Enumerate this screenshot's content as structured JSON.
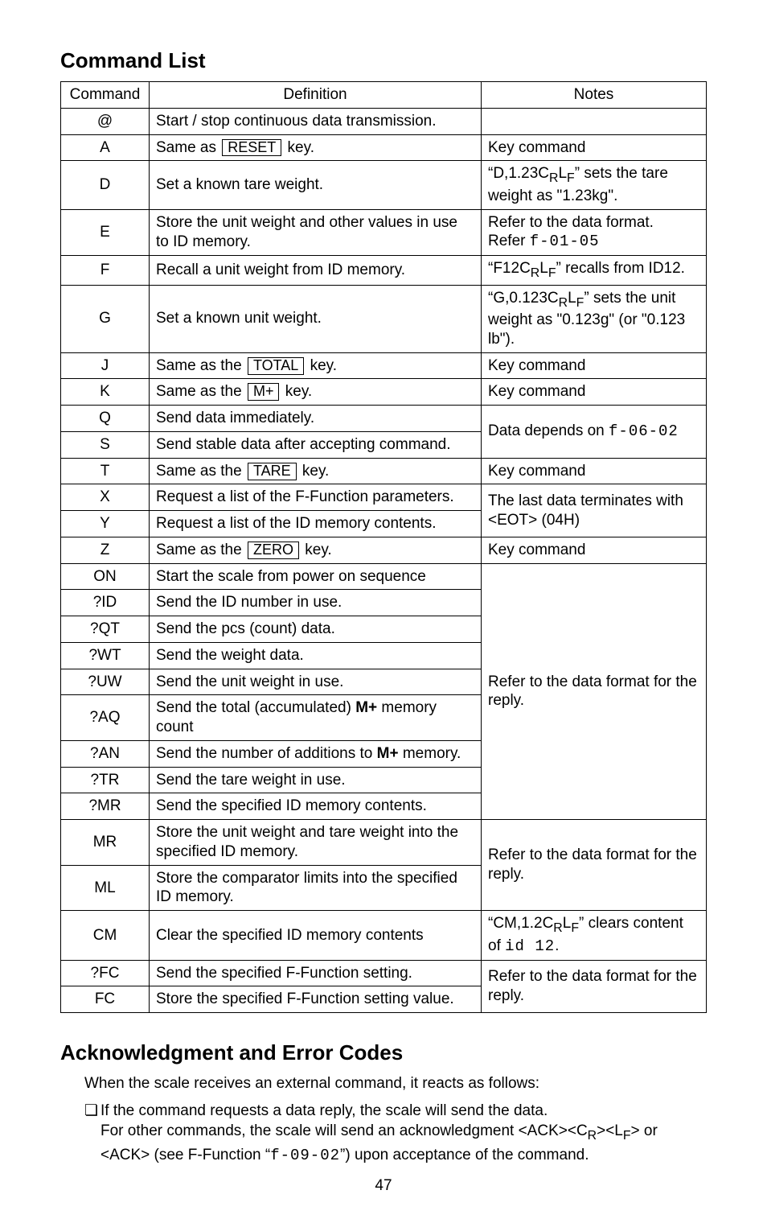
{
  "section1": {
    "title": "Command List",
    "headers": {
      "c1": "Command",
      "c2": "Definition",
      "c3": "Notes"
    },
    "rows": {
      "at": {
        "cmd": "@",
        "def_plain": "Start / stop continuous data transmission.",
        "notes": ""
      },
      "A": {
        "cmd": "A",
        "def_pre": "Same as ",
        "key": "RESET",
        "def_post": " key.",
        "notes": "Key command"
      },
      "D": {
        "cmd": "D",
        "def_plain": "Set a known tare weight.",
        "notes_html": "“D,1.23C<sub>R</sub>L<sub>F</sub>” sets the tare weight as \"1.23kg\"."
      },
      "E": {
        "cmd": "E",
        "def_plain": "Store the unit weight and other values in use to ID memory.",
        "notes_line1": "Refer to the data format.",
        "notes_line2_pre": "Refer ",
        "notes_seg": "f-01-05"
      },
      "F": {
        "cmd": "F",
        "def_plain": "Recall a unit weight from ID memory.",
        "notes_html": "“F12C<sub>R</sub>L<sub>F</sub>” recalls from ID12."
      },
      "G": {
        "cmd": "G",
        "def_plain": "Set a known unit weight.",
        "notes_html": "“G,0.123C<sub>R</sub>L<sub>F</sub>” sets the unit weight as \"0.123g\" (or \"0.123 lb\")."
      },
      "J": {
        "cmd": "J",
        "def_pre": "Same as the ",
        "key": "TOTAL",
        "def_post": " key.",
        "notes": "Key command"
      },
      "K": {
        "cmd": "K",
        "def_pre": "Same as the ",
        "key": "M+",
        "def_post": " key.",
        "notes": "Key command"
      },
      "Q": {
        "cmd": "Q",
        "def_plain": "Send data immediately."
      },
      "S": {
        "cmd": "S",
        "def_plain": "Send stable data after accepting command."
      },
      "QS_notes_pre": "Data depends on ",
      "QS_notes_seg": "f-06-02",
      "T": {
        "cmd": "T",
        "def_pre": "Same as the ",
        "key": "TARE",
        "def_post": " key.",
        "notes": "Key command"
      },
      "X": {
        "cmd": "X",
        "def_plain": "Request a list of the F-Function parameters."
      },
      "Y": {
        "cmd": "Y",
        "def_plain": "Request a list of the ID memory contents."
      },
      "XY_notes": "The last data terminates with <EOT> (04H)",
      "Z": {
        "cmd": "Z",
        "def_pre": "Same as the ",
        "key": "ZERO",
        "def_post": " key.",
        "notes": "Key command"
      },
      "ON": {
        "cmd": "ON",
        "def_plain": "Start the scale from power on sequence"
      },
      "ID": {
        "cmd": "?ID",
        "def_plain": "Send the ID number in use."
      },
      "QT": {
        "cmd": "?QT",
        "def_plain": "Send the pcs (count) data."
      },
      "WT": {
        "cmd": "?WT",
        "def_plain": "Send the weight data."
      },
      "UW": {
        "cmd": "?UW",
        "def_plain": "Send the unit weight in use."
      },
      "AQ": {
        "cmd": "?AQ",
        "def_pre": "Send the total (accumulated) ",
        "bold": "M+",
        "def_post": " memory count"
      },
      "AN": {
        "cmd": "?AN",
        "def_pre": "Send the number of additions to ",
        "bold": "M+",
        "def_post": " memory."
      },
      "TR": {
        "cmd": "?TR",
        "def_plain": "Send the tare weight in use."
      },
      "MRq": {
        "cmd": "?MR",
        "def_plain": "Send the specified ID memory contents."
      },
      "block_notes": "Refer to the data format for the reply.",
      "MR": {
        "cmd": "MR",
        "def_plain": "Store the unit weight and tare weight into the specified ID memory."
      },
      "ML": {
        "cmd": "ML",
        "def_plain": "Store the comparator limits into the specified ID memory."
      },
      "MRML_notes": "Refer to the data format for the reply.",
      "CM": {
        "cmd": "CM",
        "def_plain": "Clear the specified ID memory contents",
        "notes_html_pre": "“CM,1.2C<sub>R</sub>L<sub>F</sub>” clears content of ",
        "notes_seg": "id 12",
        "notes_post": "."
      },
      "FCq": {
        "cmd": "?FC",
        "def_plain": "Send the specified F-Function setting."
      },
      "FC": {
        "cmd": "FC",
        "def_plain": "Store the specified F-Function setting value."
      },
      "FC_notes": "Refer to the data format for the reply."
    }
  },
  "section2": {
    "title": "Acknowledgment and Error Codes",
    "intro": "When the scale receives an external command, it reacts as follows:",
    "bullet": "❏",
    "item1": "If the command requests a data reply, the scale will send the data.",
    "item2_pre": "For other commands, the scale will send an acknowledgment <ACK><C",
    "item2_mid": "><L",
    "item2_post": "> or <ACK> (see F-Function “",
    "item2_seg": "f-09-02",
    "item2_end": "”) upon acceptance of the command."
  },
  "pagenum": "47",
  "style": {
    "key_border": "#000000",
    "text_color": "#000000",
    "bg": "#ffffff"
  }
}
